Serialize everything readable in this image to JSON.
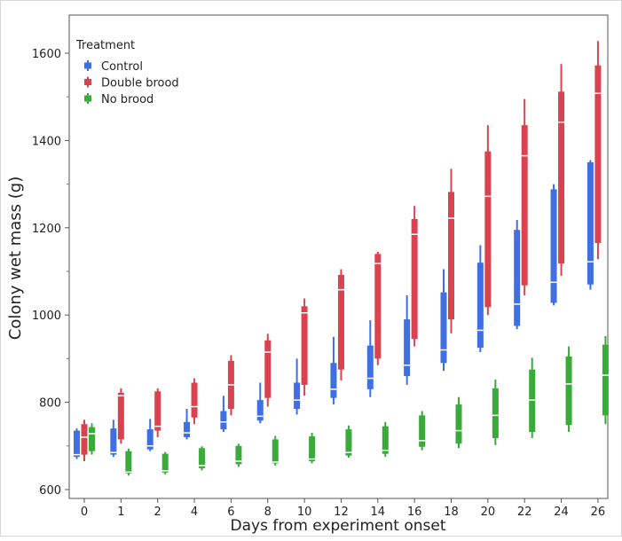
{
  "chart_data": {
    "type": "box",
    "title": "",
    "xlabel": "Days from experiment onset",
    "ylabel": "Colony wet mass (g)",
    "ylim": [
      600,
      1650
    ],
    "yticks": [
      600,
      800,
      1000,
      1200,
      1400,
      1600
    ],
    "categories": [
      "0",
      "1",
      "2",
      "4",
      "6",
      "8",
      "10",
      "12",
      "14",
      "16",
      "18",
      "20",
      "22",
      "24",
      "26"
    ],
    "legend": {
      "title": "Treatment",
      "position": "top-left"
    },
    "series": [
      {
        "name": "Control",
        "color": "#3F6FE0",
        "boxes": [
          {
            "min": 670,
            "q1": 675,
            "median": 680,
            "q3": 735,
            "max": 740
          },
          {
            "min": 675,
            "q1": 680,
            "median": 685,
            "q3": 740,
            "max": 760
          },
          {
            "min": 688,
            "q1": 692,
            "median": 700,
            "q3": 738,
            "max": 762
          },
          {
            "min": 715,
            "q1": 720,
            "median": 730,
            "q3": 755,
            "max": 785
          },
          {
            "min": 732,
            "q1": 738,
            "median": 755,
            "q3": 780,
            "max": 815
          },
          {
            "min": 752,
            "q1": 758,
            "median": 768,
            "q3": 805,
            "max": 845
          },
          {
            "min": 772,
            "q1": 785,
            "median": 805,
            "q3": 845,
            "max": 900
          },
          {
            "min": 795,
            "q1": 810,
            "median": 830,
            "q3": 890,
            "max": 950
          },
          {
            "min": 812,
            "q1": 830,
            "median": 855,
            "q3": 930,
            "max": 988
          },
          {
            "min": 840,
            "q1": 860,
            "median": 885,
            "q3": 990,
            "max": 1045
          },
          {
            "min": 872,
            "q1": 890,
            "median": 920,
            "q3": 1052,
            "max": 1105
          },
          {
            "min": 915,
            "q1": 925,
            "median": 965,
            "q3": 1120,
            "max": 1160
          },
          {
            "min": 968,
            "q1": 975,
            "median": 1025,
            "q3": 1195,
            "max": 1218
          },
          {
            "min": 1022,
            "q1": 1028,
            "median": 1075,
            "q3": 1288,
            "max": 1300
          },
          {
            "min": 1058,
            "q1": 1070,
            "median": 1122,
            "q3": 1350,
            "max": 1355
          }
        ]
      },
      {
        "name": "Double brood",
        "color": "#D9434F",
        "boxes": [
          {
            "min": 665,
            "q1": 680,
            "median": 720,
            "q3": 750,
            "max": 760
          },
          {
            "min": 705,
            "q1": 715,
            "median": 815,
            "q3": 822,
            "max": 832
          },
          {
            "min": 720,
            "q1": 735,
            "median": 745,
            "q3": 825,
            "max": 832
          },
          {
            "min": 750,
            "q1": 765,
            "median": 790,
            "q3": 845,
            "max": 855
          },
          {
            "min": 770,
            "q1": 785,
            "median": 840,
            "q3": 895,
            "max": 908
          },
          {
            "min": 790,
            "q1": 810,
            "median": 915,
            "q3": 942,
            "max": 957
          },
          {
            "min": 815,
            "q1": 840,
            "median": 1005,
            "q3": 1020,
            "max": 1038
          },
          {
            "min": 850,
            "q1": 875,
            "median": 1058,
            "q3": 1092,
            "max": 1105
          },
          {
            "min": 885,
            "q1": 900,
            "median": 1118,
            "q3": 1140,
            "max": 1145
          },
          {
            "min": 928,
            "q1": 945,
            "median": 1185,
            "q3": 1220,
            "max": 1250
          },
          {
            "min": 958,
            "q1": 990,
            "median": 1222,
            "q3": 1282,
            "max": 1335
          },
          {
            "min": 1000,
            "q1": 1018,
            "median": 1272,
            "q3": 1375,
            "max": 1435
          },
          {
            "min": 1045,
            "q1": 1068,
            "median": 1365,
            "q3": 1435,
            "max": 1495
          },
          {
            "min": 1090,
            "q1": 1118,
            "median": 1442,
            "q3": 1512,
            "max": 1575
          },
          {
            "min": 1128,
            "q1": 1165,
            "median": 1508,
            "q3": 1572,
            "max": 1628
          }
        ]
      },
      {
        "name": "No brood",
        "color": "#3AAA3A",
        "boxes": [
          {
            "min": 680,
            "q1": 688,
            "median": 728,
            "q3": 743,
            "max": 752
          },
          {
            "min": 632,
            "q1": 637,
            "median": 640,
            "q3": 688,
            "max": 694
          },
          {
            "min": 635,
            "q1": 639,
            "median": 643,
            "q3": 682,
            "max": 686
          },
          {
            "min": 644,
            "q1": 649,
            "median": 655,
            "q3": 695,
            "max": 699
          },
          {
            "min": 652,
            "q1": 658,
            "median": 665,
            "q3": 700,
            "max": 705
          },
          {
            "min": 655,
            "q1": 660,
            "median": 663,
            "q3": 715,
            "max": 723
          },
          {
            "min": 660,
            "q1": 665,
            "median": 670,
            "q3": 722,
            "max": 730
          },
          {
            "min": 673,
            "q1": 678,
            "median": 685,
            "q3": 738,
            "max": 747
          },
          {
            "min": 675,
            "q1": 682,
            "median": 690,
            "q3": 745,
            "max": 755
          },
          {
            "min": 690,
            "q1": 698,
            "median": 712,
            "q3": 770,
            "max": 780
          },
          {
            "min": 695,
            "q1": 705,
            "median": 735,
            "q3": 795,
            "max": 812
          },
          {
            "min": 702,
            "q1": 718,
            "median": 770,
            "q3": 832,
            "max": 852
          },
          {
            "min": 718,
            "q1": 732,
            "median": 805,
            "q3": 875,
            "max": 902
          },
          {
            "min": 732,
            "q1": 748,
            "median": 842,
            "q3": 905,
            "max": 928
          },
          {
            "min": 750,
            "q1": 770,
            "median": 862,
            "q3": 932,
            "max": 952
          }
        ]
      }
    ]
  }
}
